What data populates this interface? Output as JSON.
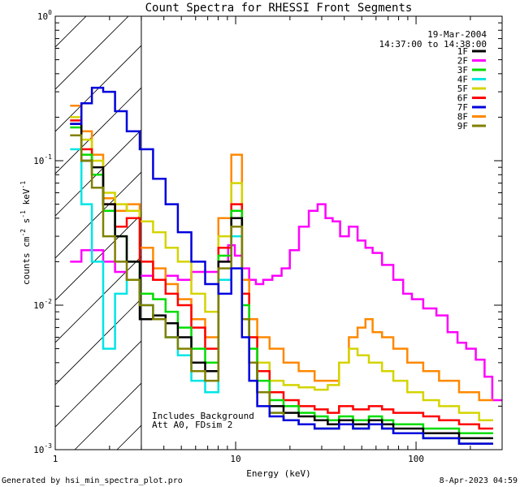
{
  "chart_data": {
    "type": "line",
    "title": "Count Spectra for RHESSI Front Segments",
    "xlabel": "Energy (keV)",
    "ylabel": "counts cm",
    "ylabel_sup1": "-2",
    "ylabel_mid": " s",
    "ylabel_sup2": "-1",
    "ylabel_tail": " keV",
    "ylabel_sup3": "-1",
    "xscale": "log",
    "yscale": "log",
    "xlim": [
      1,
      300
    ],
    "ylim": [
      0.001,
      1
    ],
    "x_ticks": [
      {
        "v": 1,
        "label": "1"
      },
      {
        "v": 10,
        "label": "10"
      },
      {
        "v": 100,
        "label": "100"
      }
    ],
    "y_ticks": [
      {
        "v": 1,
        "base": "10",
        "exp": "0"
      },
      {
        "v": 0.1,
        "base": "10",
        "exp": "-1"
      },
      {
        "v": 0.01,
        "base": "10",
        "exp": "-2"
      },
      {
        "v": 0.001,
        "base": "10",
        "exp": "-3"
      }
    ],
    "date": "19-Mar-2004",
    "time_range": "14:37:00 to 14:38:00",
    "hatched_below_keV": 3,
    "annotation_line1": "Includes Background",
    "annotation_line2": "Att A0, FDsim 2",
    "footer_left": "Generated by hsi_min_spectra_plot.pro",
    "footer_right": "8-Apr-2023 04:59",
    "series": [
      {
        "name": "1F",
        "color": "#000000",
        "x": [
          1.3,
          1.5,
          1.7,
          2.0,
          2.3,
          2.7,
          3.2,
          3.8,
          4.4,
          5.2,
          6.2,
          7.4,
          8.7,
          10.3,
          11.4,
          12.4,
          14,
          17,
          20,
          25,
          30,
          35,
          40,
          50,
          60,
          70,
          80,
          100,
          120,
          150,
          200,
          250
        ],
        "values": [
          0.18,
          0.1,
          0.09,
          0.05,
          0.03,
          0.02,
          0.008,
          0.0085,
          0.0075,
          0.006,
          0.004,
          0.0035,
          0.02,
          0.04,
          0.008,
          0.004,
          0.0025,
          0.002,
          0.0018,
          0.0017,
          0.0016,
          0.0015,
          0.0016,
          0.0015,
          0.0016,
          0.0015,
          0.0014,
          0.0014,
          0.0013,
          0.0013,
          0.0012,
          0.0012
        ]
      },
      {
        "name": "2F",
        "color": "#ff00ff",
        "x": [
          1.3,
          1.5,
          1.7,
          2.0,
          2.3,
          2.7,
          3.2,
          3.8,
          4.4,
          5.2,
          6.2,
          7.4,
          8.7,
          9.5,
          10.3,
          11.4,
          12.4,
          13.5,
          15,
          17,
          19,
          21,
          24,
          27,
          30,
          33,
          36,
          40,
          45,
          50,
          55,
          60,
          70,
          80,
          90,
          100,
          120,
          140,
          160,
          180,
          200,
          230,
          250,
          280
        ],
        "values": [
          0.02,
          0.024,
          0.024,
          0.02,
          0.017,
          0.015,
          0.016,
          0.015,
          0.016,
          0.015,
          0.017,
          0.017,
          0.02,
          0.026,
          0.022,
          0.018,
          0.015,
          0.014,
          0.015,
          0.016,
          0.018,
          0.024,
          0.035,
          0.045,
          0.05,
          0.04,
          0.038,
          0.03,
          0.035,
          0.028,
          0.025,
          0.023,
          0.019,
          0.015,
          0.012,
          0.011,
          0.0095,
          0.0085,
          0.0065,
          0.0055,
          0.005,
          0.0042,
          0.0032,
          0.0022
        ]
      },
      {
        "name": "3F",
        "color": "#00dd00",
        "x": [
          1.3,
          1.5,
          1.7,
          2.0,
          2.3,
          2.7,
          3.2,
          3.8,
          4.4,
          5.2,
          6.2,
          7.4,
          8.7,
          10.3,
          11.4,
          12.4,
          14,
          17,
          20,
          25,
          30,
          35,
          40,
          50,
          60,
          70,
          80,
          100,
          120,
          150,
          200,
          250
        ],
        "values": [
          0.17,
          0.11,
          0.08,
          0.045,
          0.03,
          0.02,
          0.012,
          0.011,
          0.009,
          0.007,
          0.005,
          0.004,
          0.022,
          0.045,
          0.01,
          0.005,
          0.003,
          0.0022,
          0.002,
          0.0018,
          0.0017,
          0.0016,
          0.0017,
          0.0016,
          0.0017,
          0.0016,
          0.0015,
          0.0015,
          0.0014,
          0.0014,
          0.0013,
          0.0013
        ]
      },
      {
        "name": "4F",
        "color": "#00e5e5",
        "x": [
          1.3,
          1.5,
          1.7,
          2.0,
          2.3,
          2.7,
          3.2,
          3.8,
          4.4,
          5.2,
          6.2,
          7.4,
          8.7,
          10.3,
          11.4,
          12.4,
          14,
          17,
          20,
          25,
          30,
          35,
          40,
          50,
          60,
          70,
          80,
          100,
          120,
          150,
          200,
          250
        ],
        "values": [
          0.12,
          0.05,
          0.02,
          0.005,
          0.012,
          0.015,
          0.01,
          0.008,
          0.006,
          0.0045,
          0.003,
          0.0025,
          0.015,
          0.03,
          0.008,
          0.004,
          0.0025,
          0.0018,
          0.0016,
          0.0015,
          0.0014,
          0.0014,
          0.0015,
          0.0014,
          0.0015,
          0.0014,
          0.0013,
          0.0013,
          0.0012,
          0.0012,
          0.0011,
          0.0011
        ]
      },
      {
        "name": "5F",
        "color": "#d4d400",
        "x": [
          1.3,
          1.5,
          1.7,
          2.0,
          2.3,
          2.7,
          3.2,
          3.8,
          4.4,
          5.2,
          6.2,
          7.4,
          8.7,
          10.3,
          11.4,
          12.4,
          14,
          17,
          20,
          25,
          30,
          35,
          40,
          45,
          50,
          60,
          70,
          80,
          100,
          120,
          150,
          200,
          250
        ],
        "values": [
          0.2,
          0.14,
          0.1,
          0.06,
          0.05,
          0.045,
          0.038,
          0.032,
          0.025,
          0.02,
          0.012,
          0.009,
          0.03,
          0.07,
          0.012,
          0.006,
          0.004,
          0.003,
          0.0028,
          0.0027,
          0.0026,
          0.0028,
          0.004,
          0.005,
          0.0045,
          0.004,
          0.0035,
          0.003,
          0.0025,
          0.0022,
          0.002,
          0.0018,
          0.0016
        ]
      },
      {
        "name": "6F",
        "color": "#ff0000",
        "x": [
          1.3,
          1.5,
          1.7,
          2.0,
          2.3,
          2.7,
          3.2,
          3.8,
          4.4,
          5.2,
          6.2,
          7.4,
          8.7,
          10.3,
          11.4,
          12.4,
          14,
          17,
          20,
          25,
          30,
          35,
          40,
          50,
          60,
          70,
          80,
          100,
          120,
          150,
          200,
          250
        ],
        "values": [
          0.19,
          0.12,
          0.08,
          0.05,
          0.035,
          0.04,
          0.02,
          0.015,
          0.012,
          0.01,
          0.007,
          0.005,
          0.025,
          0.05,
          0.012,
          0.006,
          0.0035,
          0.0025,
          0.0022,
          0.002,
          0.0019,
          0.0018,
          0.002,
          0.0019,
          0.002,
          0.0019,
          0.0018,
          0.0018,
          0.0017,
          0.0016,
          0.0015,
          0.0014
        ]
      },
      {
        "name": "7F",
        "color": "#0000dd",
        "x": [
          1.3,
          1.5,
          1.7,
          2.0,
          2.3,
          2.7,
          3.2,
          3.8,
          4.4,
          5.2,
          6.2,
          7.4,
          8.7,
          10.3,
          11.4,
          12.4,
          14,
          17,
          20,
          25,
          30,
          35,
          40,
          50,
          60,
          70,
          80,
          100,
          120,
          150,
          200,
          250
        ],
        "values": [
          0.18,
          0.25,
          0.32,
          0.3,
          0.22,
          0.16,
          0.12,
          0.075,
          0.05,
          0.032,
          0.02,
          0.014,
          0.012,
          0.018,
          0.006,
          0.003,
          0.002,
          0.0017,
          0.0016,
          0.0015,
          0.0014,
          0.0014,
          0.0015,
          0.0014,
          0.0015,
          0.0014,
          0.0013,
          0.0013,
          0.0012,
          0.0012,
          0.0011,
          0.0011
        ]
      },
      {
        "name": "8F",
        "color": "#ff8800",
        "x": [
          1.3,
          1.5,
          1.7,
          2.0,
          2.3,
          2.7,
          3.2,
          3.8,
          4.4,
          5.2,
          6.2,
          7.4,
          8.7,
          10.3,
          11.4,
          12.4,
          14,
          17,
          20,
          25,
          30,
          35,
          40,
          45,
          50,
          55,
          60,
          70,
          80,
          100,
          120,
          150,
          200,
          250
        ],
        "values": [
          0.24,
          0.16,
          0.11,
          0.055,
          0.045,
          0.05,
          0.025,
          0.018,
          0.014,
          0.011,
          0.008,
          0.006,
          0.04,
          0.11,
          0.015,
          0.008,
          0.006,
          0.005,
          0.004,
          0.0035,
          0.003,
          0.003,
          0.004,
          0.006,
          0.007,
          0.008,
          0.0065,
          0.006,
          0.005,
          0.004,
          0.0035,
          0.003,
          0.0025,
          0.0022
        ]
      },
      {
        "name": "9F",
        "color": "#808000",
        "x": [
          1.3,
          1.5,
          1.7,
          2.0,
          2.3,
          2.7,
          3.2,
          3.8,
          4.4,
          5.2,
          6.2,
          7.4,
          8.7,
          10.3,
          11.4,
          12.4,
          14,
          17,
          20,
          25,
          30,
          35,
          40,
          50,
          60,
          70,
          80,
          100,
          120,
          150,
          200,
          250
        ],
        "values": [
          0.15,
          0.1,
          0.065,
          0.03,
          0.02,
          0.015,
          0.01,
          0.008,
          0.006,
          0.005,
          0.0035,
          0.003,
          0.018,
          0.035,
          0.008,
          0.004,
          0.0025,
          0.0018,
          0.0016,
          0.0015,
          0.0014,
          0.0014,
          0.0015,
          0.0014,
          0.0015,
          0.0014,
          0.0013,
          0.0013,
          0.0012,
          0.0012,
          0.0011,
          0.0011
        ]
      }
    ]
  }
}
